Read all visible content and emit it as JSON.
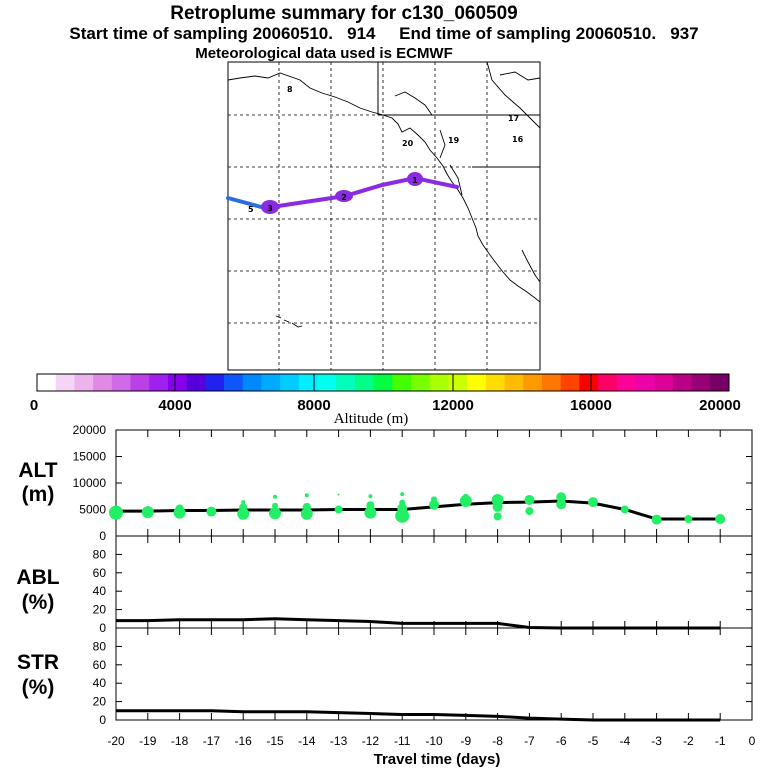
{
  "header": {
    "title": "Retroplume summary for c130_060509",
    "subtitle": "Start time of sampling 20060510.   914     End time of sampling 20060510.   937",
    "met": "Meteorological data used is ECMWF"
  },
  "colors": {
    "alt_point": "#22ee66",
    "line": "#000000",
    "track_blue": "#2a6fdc",
    "track_purple": "#8a2be2"
  },
  "map": {
    "track_labels": [
      "1",
      "2",
      "3"
    ],
    "numbers": [
      "8",
      "20",
      "19",
      "17",
      "16",
      "5"
    ]
  },
  "colorbar": {
    "tick_labels": [
      "0",
      "4000",
      "8000",
      "12000",
      "16000",
      "20000"
    ],
    "label": "Altitude (m)",
    "colors": [
      "#ffffff",
      "#f5d5f5",
      "#ecb3ec",
      "#e08ae8",
      "#d06ae8",
      "#bb40e8",
      "#a020f0",
      "#8800ee",
      "#5500dd",
      "#2222ee",
      "#1155ff",
      "#0088ff",
      "#00aaff",
      "#00ccff",
      "#00eeff",
      "#00ffee",
      "#00ffbb",
      "#00ff88",
      "#00ff44",
      "#44ff00",
      "#77ff00",
      "#aaff00",
      "#ccff00",
      "#ffff00",
      "#ffdd00",
      "#ffbb00",
      "#ff9900",
      "#ff7700",
      "#ff4400",
      "#ff0000",
      "#ff0066",
      "#ff0099",
      "#ee00aa",
      "#dd0099",
      "#bb0088",
      "#990077",
      "#770066"
    ]
  },
  "chart_data": [
    {
      "type": "scatter",
      "panel": "ALT",
      "ylabel_line1": "ALT",
      "ylabel_line2": "(m)",
      "ylim": [
        0,
        20000
      ],
      "yticks": [
        "0",
        "5000",
        "10000",
        "15000",
        "20000"
      ],
      "mean_x": [
        -20,
        -19,
        -18,
        -17,
        -16,
        -15,
        -14,
        -13,
        -12,
        -11,
        -10,
        -9,
        -8,
        -7,
        -6,
        -5,
        -4,
        -3,
        -2,
        -1
      ],
      "mean_y": [
        4700,
        4700,
        4800,
        4800,
        4900,
        4900,
        4900,
        5000,
        5000,
        5000,
        5500,
        6000,
        6300,
        6400,
        6600,
        6200,
        5000,
        3200,
        3200,
        3200
      ],
      "points": [
        {
          "x": -20,
          "y": 4400,
          "size": 7
        },
        {
          "x": -19,
          "y": 4500,
          "size": 6
        },
        {
          "x": -18,
          "y": 4400,
          "size": 6
        },
        {
          "x": -18,
          "y": 5200,
          "size": 4
        },
        {
          "x": -17,
          "y": 4600,
          "size": 5
        },
        {
          "x": -16,
          "y": 4200,
          "size": 6
        },
        {
          "x": -16,
          "y": 5400,
          "size": 4
        },
        {
          "x": -16,
          "y": 6400,
          "size": 2
        },
        {
          "x": -15,
          "y": 4300,
          "size": 6
        },
        {
          "x": -15,
          "y": 5700,
          "size": 3
        },
        {
          "x": -15,
          "y": 7400,
          "size": 2
        },
        {
          "x": -14,
          "y": 4200,
          "size": 6
        },
        {
          "x": -14,
          "y": 5500,
          "size": 4
        },
        {
          "x": -14,
          "y": 7700,
          "size": 2
        },
        {
          "x": -13,
          "y": 5000,
          "size": 4
        },
        {
          "x": -13,
          "y": 7800,
          "size": 1
        },
        {
          "x": -12,
          "y": 4400,
          "size": 6
        },
        {
          "x": -12,
          "y": 5800,
          "size": 4
        },
        {
          "x": -12,
          "y": 7500,
          "size": 2
        },
        {
          "x": -11,
          "y": 3800,
          "size": 7
        },
        {
          "x": -11,
          "y": 5200,
          "size": 5
        },
        {
          "x": -11,
          "y": 6300,
          "size": 3
        },
        {
          "x": -11,
          "y": 7900,
          "size": 2
        },
        {
          "x": -10,
          "y": 5900,
          "size": 5
        },
        {
          "x": -10,
          "y": 6900,
          "size": 3
        },
        {
          "x": -9,
          "y": 6600,
          "size": 6
        },
        {
          "x": -9,
          "y": 7400,
          "size": 3
        },
        {
          "x": -8,
          "y": 6800,
          "size": 6
        },
        {
          "x": -8,
          "y": 5500,
          "size": 5
        },
        {
          "x": -8,
          "y": 3700,
          "size": 4
        },
        {
          "x": -7,
          "y": 6800,
          "size": 5
        },
        {
          "x": -7,
          "y": 4700,
          "size": 4
        },
        {
          "x": -6,
          "y": 7300,
          "size": 5
        },
        {
          "x": -6,
          "y": 6000,
          "size": 5
        },
        {
          "x": -5,
          "y": 6400,
          "size": 5
        },
        {
          "x": -4,
          "y": 5000,
          "size": 4
        },
        {
          "x": -3,
          "y": 3100,
          "size": 5
        },
        {
          "x": -2,
          "y": 3200,
          "size": 4
        },
        {
          "x": -1,
          "y": 3200,
          "size": 5
        }
      ]
    },
    {
      "type": "line",
      "panel": "ABL",
      "ylabel_line1": "ABL",
      "ylabel_line2": "(%)",
      "ylim": [
        0,
        100
      ],
      "yticks": [
        "0",
        "20",
        "40",
        "60",
        "80"
      ],
      "x": [
        -20,
        -19,
        -18,
        -17,
        -16,
        -15,
        -14,
        -13,
        -12,
        -11,
        -10,
        -9,
        -8,
        -7,
        -6,
        -5,
        -4,
        -3,
        -2,
        -1
      ],
      "y": [
        8,
        8,
        9,
        9,
        9,
        10,
        9,
        8,
        7,
        5,
        5,
        5,
        5,
        0.5,
        0,
        0,
        0,
        0,
        0,
        0
      ]
    },
    {
      "type": "line",
      "panel": "STR",
      "ylabel_line1": "STR",
      "ylabel_line2": "(%)",
      "ylim": [
        0,
        100
      ],
      "yticks": [
        "0",
        "20",
        "40",
        "60",
        "80"
      ],
      "x": [
        -20,
        -19,
        -18,
        -17,
        -16,
        -15,
        -14,
        -13,
        -12,
        -11,
        -10,
        -9,
        -8,
        -7,
        -6,
        -5,
        -4,
        -3,
        -2,
        -1
      ],
      "y": [
        10,
        10,
        10,
        10,
        9,
        9,
        9,
        8,
        7,
        6,
        6,
        5,
        4,
        2,
        1,
        0,
        0,
        0,
        0,
        0
      ]
    }
  ],
  "xaxis": {
    "ticks": [
      "-20",
      "-19",
      "-18",
      "-17",
      "-16",
      "-15",
      "-14",
      "-13",
      "-12",
      "-11",
      "-10",
      "-9",
      "-8",
      "-7",
      "-6",
      "-5",
      "-4",
      "-3",
      "-2",
      "-1",
      "0"
    ],
    "label": "Travel time (days)"
  }
}
